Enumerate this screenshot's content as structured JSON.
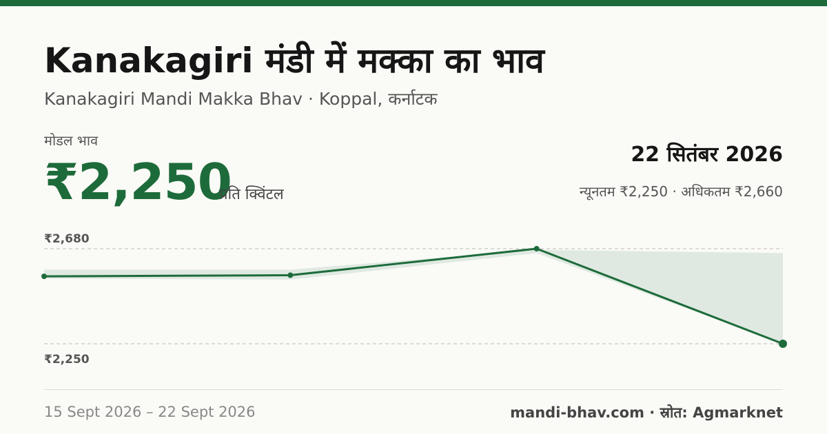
{
  "header": {
    "title": "Kanakagiri मंडी में मक्का का भाव",
    "subtitle": "Kanakagiri Mandi Makka Bhav · Koppal, कर्नाटक"
  },
  "price": {
    "label": "मोडल भाव",
    "modal": "₹2,250",
    "unit": "प्रति क्विंटल",
    "date": "22 सितंबर 2026",
    "range": "न्यूनतम ₹2,250 · अधिकतम ₹2,660"
  },
  "footer": {
    "period": "15 Sept 2026 – 22 Sept 2026",
    "source": "mandi-bhav.com · स्रोत: Agmarknet"
  },
  "colors": {
    "accent": "#1d6b3a",
    "band": "#dfe9e2"
  },
  "chart_data": {
    "type": "line",
    "x": [
      "15 Sept 2026",
      "",
      "",
      "22 Sept 2026"
    ],
    "series": [
      {
        "values": [
          2555,
          2560,
          2680,
          2250
        ]
      }
    ],
    "band": {
      "min": [
        2545,
        2540,
        2660,
        2250
      ],
      "max": [
        2585,
        2585,
        2675,
        2660
      ]
    },
    "ylim": [
      2250,
      2680
    ],
    "yticks": [
      {
        "value": 2680,
        "label": "₹2,680"
      },
      {
        "value": 2250,
        "label": "₹2,250"
      }
    ],
    "grid": true
  }
}
